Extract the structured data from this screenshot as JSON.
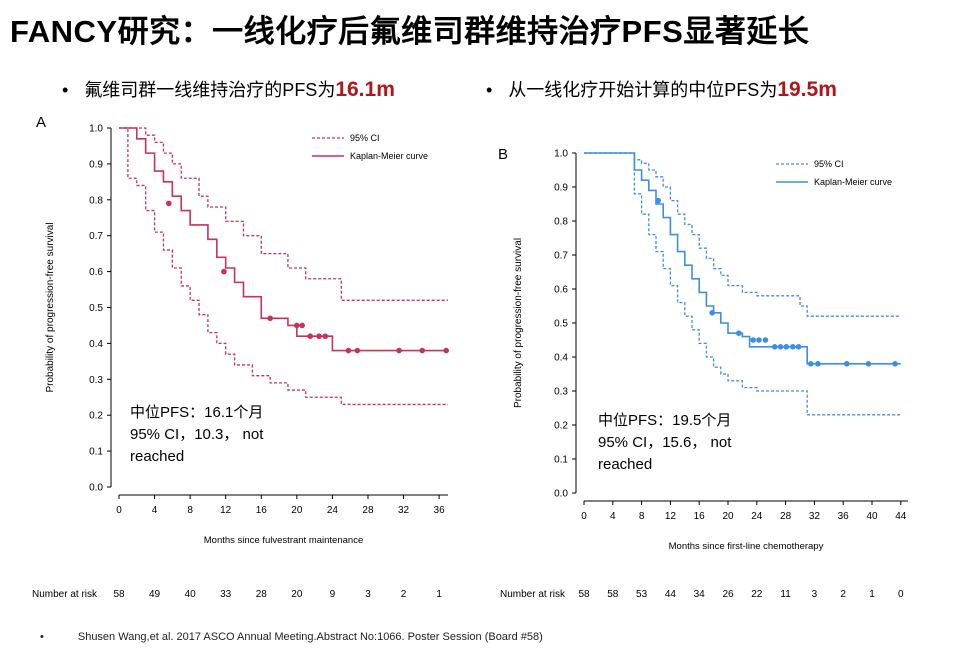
{
  "title": "FANCY研究：一线化疗后氟维司群维持治疗PFS显著延长",
  "bullets": [
    {
      "bullet": "•",
      "text": "氟维司群一线维持治疗的PFS为",
      "highlight": "16.1m"
    },
    {
      "bullet": "•",
      "text": "从一线化疗开始计算的中位PFS为",
      "highlight": "19.5m"
    }
  ],
  "number_at_risk_label": "Number at risk",
  "reference": {
    "bullet": "•",
    "text": "Shusen Wang,et al. 2017 ASCO Annual Meeting.Abstract No:1066. Poster Session (Board #58)"
  },
  "colors": {
    "panel_a": "#c8325a",
    "panel_b": "#3d8fe6",
    "highlight": "#b0151b"
  },
  "chart_data": [
    {
      "panel": "A",
      "type": "line",
      "xlabel": "Months since fulvestrant maintenance",
      "ylabel": "Probability of progression-free survival",
      "xlim": [
        0,
        37
      ],
      "ylim": [
        0,
        1.0
      ],
      "xticks": [
        0,
        4,
        8,
        12,
        16,
        20,
        24,
        28,
        32,
        36
      ],
      "yticks": [
        0.0,
        0.1,
        0.2,
        0.3,
        0.4,
        0.5,
        0.6,
        0.7,
        0.8,
        0.9,
        1.0
      ],
      "legend": [
        "95% CI",
        "Kaplan-Meier curve"
      ],
      "annotation": "中位PFS：16.1个月\n95% CI，10.3， not\nreached",
      "series": [
        {
          "name": "Kaplan-Meier curve",
          "x": [
            0,
            2,
            3,
            4,
            5,
            6,
            7,
            8,
            10,
            11,
            12,
            13,
            14,
            16,
            19,
            20,
            21,
            24,
            37
          ],
          "y": [
            1.0,
            0.97,
            0.93,
            0.88,
            0.85,
            0.81,
            0.77,
            0.73,
            0.69,
            0.64,
            0.61,
            0.57,
            0.53,
            0.47,
            0.45,
            0.42,
            0.42,
            0.38,
            0.38
          ]
        },
        {
          "name": "95% CI upper",
          "x": [
            0,
            3,
            4,
            5,
            6,
            7,
            9,
            10,
            12,
            14,
            16,
            19,
            21,
            24,
            25,
            37
          ],
          "y": [
            1.0,
            0.98,
            0.96,
            0.93,
            0.9,
            0.86,
            0.81,
            0.78,
            0.74,
            0.7,
            0.65,
            0.61,
            0.58,
            0.58,
            0.52,
            0.52
          ]
        },
        {
          "name": "95% CI lower",
          "x": [
            0,
            1,
            2,
            3,
            4,
            5,
            6,
            7,
            8,
            9,
            10,
            11,
            12,
            13,
            15,
            17,
            19,
            21,
            24,
            25,
            37
          ],
          "y": [
            1.0,
            0.86,
            0.84,
            0.77,
            0.71,
            0.66,
            0.61,
            0.56,
            0.52,
            0.48,
            0.43,
            0.4,
            0.37,
            0.34,
            0.31,
            0.29,
            0.27,
            0.25,
            0.25,
            0.23,
            0.23
          ]
        }
      ],
      "censored": [
        {
          "x": 5.6,
          "y": 0.79
        },
        {
          "x": 11.8,
          "y": 0.6
        },
        {
          "x": 17,
          "y": 0.47
        },
        {
          "x": 20,
          "y": 0.45
        },
        {
          "x": 20.6,
          "y": 0.45
        },
        {
          "x": 21.5,
          "y": 0.42
        },
        {
          "x": 22.5,
          "y": 0.42
        },
        {
          "x": 23.2,
          "y": 0.42
        },
        {
          "x": 25.8,
          "y": 0.38
        },
        {
          "x": 26.8,
          "y": 0.38
        },
        {
          "x": 31.5,
          "y": 0.38
        },
        {
          "x": 34.1,
          "y": 0.38
        },
        {
          "x": 36.8,
          "y": 0.38
        }
      ],
      "number_at_risk": [
        "58",
        "49",
        "40",
        "33",
        "28",
        "20",
        "9",
        "3",
        "2",
        "1"
      ]
    },
    {
      "panel": "B",
      "type": "line",
      "xlabel": "Months since first-line chemotherapy",
      "ylabel": "Probability of progression-free survival",
      "xlim": [
        0,
        45
      ],
      "ylim": [
        0,
        1.0
      ],
      "xticks": [
        0,
        4,
        8,
        12,
        16,
        20,
        24,
        28,
        32,
        36,
        40,
        44
      ],
      "yticks": [
        0.0,
        0.1,
        0.2,
        0.3,
        0.4,
        0.5,
        0.6,
        0.7,
        0.8,
        0.9,
        1.0
      ],
      "legend": [
        "95% CI",
        "Kaplan-Meier curve"
      ],
      "annotation": "中位PFS：19.5个月\n95% CI，15.6， not\nreached",
      "series": [
        {
          "name": "Kaplan-Meier curve",
          "x": [
            0,
            7,
            8,
            9,
            10,
            11,
            12,
            13,
            14,
            15,
            16,
            17,
            18,
            19,
            20,
            22,
            23,
            30,
            31,
            44
          ],
          "y": [
            1.0,
            0.95,
            0.92,
            0.89,
            0.85,
            0.81,
            0.76,
            0.71,
            0.67,
            0.63,
            0.59,
            0.55,
            0.53,
            0.5,
            0.47,
            0.46,
            0.43,
            0.43,
            0.38,
            0.38
          ]
        },
        {
          "name": "95% CI upper",
          "x": [
            0,
            7,
            8,
            9,
            10,
            11,
            12,
            13,
            14,
            15,
            16,
            17,
            18,
            19,
            20,
            22,
            24,
            29,
            30,
            31,
            44
          ],
          "y": [
            1.0,
            0.98,
            0.97,
            0.95,
            0.93,
            0.9,
            0.86,
            0.82,
            0.79,
            0.76,
            0.72,
            0.69,
            0.66,
            0.64,
            0.61,
            0.59,
            0.58,
            0.58,
            0.55,
            0.52,
            0.52
          ]
        },
        {
          "name": "95% CI lower",
          "x": [
            0,
            7,
            8,
            9,
            10,
            11,
            12,
            13,
            14,
            15,
            16,
            17,
            18,
            19,
            20,
            22,
            24,
            30,
            31,
            44
          ],
          "y": [
            1.0,
            0.88,
            0.82,
            0.76,
            0.71,
            0.66,
            0.61,
            0.56,
            0.52,
            0.48,
            0.44,
            0.4,
            0.37,
            0.35,
            0.33,
            0.31,
            0.3,
            0.3,
            0.23,
            0.23
          ]
        }
      ],
      "censored": [
        {
          "x": 10.3,
          "y": 0.86
        },
        {
          "x": 17.8,
          "y": 0.53
        },
        {
          "x": 21.5,
          "y": 0.47
        },
        {
          "x": 23.5,
          "y": 0.45
        },
        {
          "x": 24.3,
          "y": 0.45
        },
        {
          "x": 25.2,
          "y": 0.45
        },
        {
          "x": 26.5,
          "y": 0.43
        },
        {
          "x": 27.3,
          "y": 0.43
        },
        {
          "x": 28.1,
          "y": 0.43
        },
        {
          "x": 29,
          "y": 0.43
        },
        {
          "x": 29.8,
          "y": 0.43
        },
        {
          "x": 31.5,
          "y": 0.38
        },
        {
          "x": 32.5,
          "y": 0.38
        },
        {
          "x": 36.5,
          "y": 0.38
        },
        {
          "x": 39.5,
          "y": 0.38
        },
        {
          "x": 43.2,
          "y": 0.38
        }
      ],
      "number_at_risk": [
        "58",
        "58",
        "53",
        "44",
        "34",
        "26",
        "22",
        "11",
        "3",
        "2",
        "1",
        "0"
      ]
    }
  ]
}
